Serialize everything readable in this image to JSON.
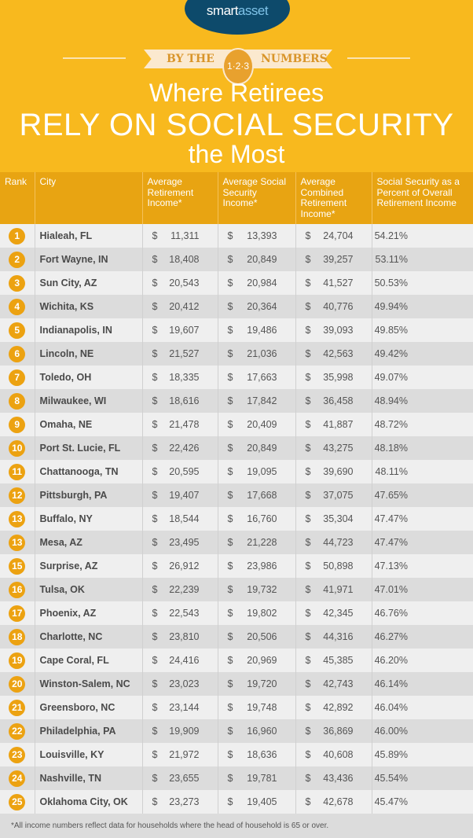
{
  "brand": {
    "name_part1": "smart",
    "name_part2": "asset",
    "colors": {
      "primary": "#f8b91e",
      "header_row": "#e8a412",
      "logo_bg": "#0d4a6b",
      "rank_badge": "#eca211"
    }
  },
  "banner": {
    "left": "BY THE",
    "badge": "1·2·3",
    "right": "NUMBERS"
  },
  "title": {
    "line1": "Where Retirees",
    "line2": "RELY ON SOCIAL SECURITY",
    "line3": "the Most"
  },
  "chart_data": {
    "type": "table",
    "columns": [
      "Rank",
      "City",
      "Average Retirement Income*",
      "Average Social Security Income*",
      "Average Combined Retirement Income*",
      "Social Security as a Percent of Overall Retirement Income"
    ],
    "currency": "$",
    "rows": [
      [
        "1",
        "Hialeah, FL",
        "11,311",
        "13,393",
        "24,704",
        "54.21%"
      ],
      [
        "2",
        "Fort Wayne, IN",
        "18,408",
        "20,849",
        "39,257",
        "53.11%"
      ],
      [
        "3",
        "Sun City, AZ",
        "20,543",
        "20,984",
        "41,527",
        "50.53%"
      ],
      [
        "4",
        "Wichita, KS",
        "20,412",
        "20,364",
        "40,776",
        "49.94%"
      ],
      [
        "5",
        "Indianapolis, IN",
        "19,607",
        "19,486",
        "39,093",
        "49.85%"
      ],
      [
        "6",
        "Lincoln, NE",
        "21,527",
        "21,036",
        "42,563",
        "49.42%"
      ],
      [
        "7",
        "Toledo, OH",
        "18,335",
        "17,663",
        "35,998",
        "49.07%"
      ],
      [
        "8",
        "Milwaukee, WI",
        "18,616",
        "17,842",
        "36,458",
        "48.94%"
      ],
      [
        "9",
        "Omaha, NE",
        "21,478",
        "20,409",
        "41,887",
        "48.72%"
      ],
      [
        "10",
        "Port St. Lucie, FL",
        "22,426",
        "20,849",
        "43,275",
        "48.18%"
      ],
      [
        "11",
        "Chattanooga, TN",
        "20,595",
        "19,095",
        "39,690",
        "48.11%"
      ],
      [
        "12",
        "Pittsburgh, PA",
        "19,407",
        "17,668",
        "37,075",
        "47.65%"
      ],
      [
        "13",
        "Buffalo, NY",
        "18,544",
        "16,760",
        "35,304",
        "47.47%"
      ],
      [
        "13",
        "Mesa, AZ",
        "23,495",
        "21,228",
        "44,723",
        "47.47%"
      ],
      [
        "15",
        "Surprise, AZ",
        "26,912",
        "23,986",
        "50,898",
        "47.13%"
      ],
      [
        "16",
        "Tulsa, OK",
        "22,239",
        "19,732",
        "41,971",
        "47.01%"
      ],
      [
        "17",
        "Phoenix, AZ",
        "22,543",
        "19,802",
        "42,345",
        "46.76%"
      ],
      [
        "18",
        "Charlotte, NC",
        "23,810",
        "20,506",
        "44,316",
        "46.27%"
      ],
      [
        "19",
        "Cape Coral, FL",
        "24,416",
        "20,969",
        "45,385",
        "46.20%"
      ],
      [
        "20",
        "Winston-Salem, NC",
        "23,023",
        "19,720",
        "42,743",
        "46.14%"
      ],
      [
        "21",
        "Greensboro, NC",
        "23,144",
        "19,748",
        "42,892",
        "46.04%"
      ],
      [
        "22",
        "Philadelphia, PA",
        "19,909",
        "16,960",
        "36,869",
        "46.00%"
      ],
      [
        "23",
        "Louisville, KY",
        "21,972",
        "18,636",
        "40,608",
        "45.89%"
      ],
      [
        "24",
        "Nashville, TN",
        "23,655",
        "19,781",
        "43,436",
        "45.54%"
      ],
      [
        "25",
        "Oklahoma City, OK",
        "23,273",
        "19,405",
        "42,678",
        "45.47%"
      ]
    ]
  },
  "footnote": "*All income numbers reflect data for households where the head of household is 65 or over."
}
